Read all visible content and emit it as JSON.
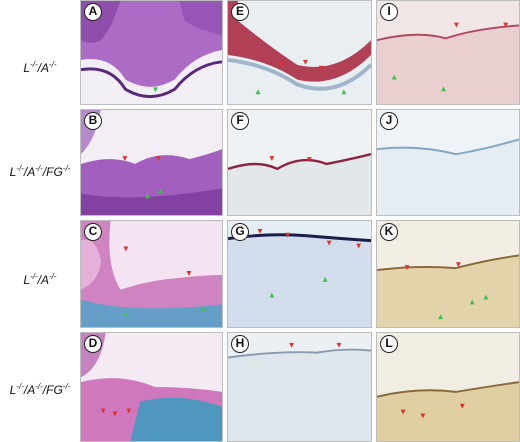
{
  "rows": [
    {
      "label": "L-/-/A-/-"
    },
    {
      "label": "L-/-/A-/-/FG-/-"
    },
    {
      "label": "L-/-/A-/-"
    },
    {
      "label": "L-/-/A-/-/FG-/-"
    }
  ],
  "panels": [
    {
      "letter": "A",
      "stain": "he"
    },
    {
      "letter": "E",
      "stain": "red-ihc"
    },
    {
      "letter": "I",
      "stain": "pink-ihc"
    },
    {
      "letter": "B",
      "stain": "he"
    },
    {
      "letter": "F",
      "stain": "red-ihc-light"
    },
    {
      "letter": "J",
      "stain": "blue-negative"
    },
    {
      "letter": "C",
      "stain": "movat"
    },
    {
      "letter": "G",
      "stain": "blue-ihc"
    },
    {
      "letter": "K",
      "stain": "brown-ihc"
    },
    {
      "letter": "D",
      "stain": "movat"
    },
    {
      "letter": "H",
      "stain": "blue-ihc-light"
    },
    {
      "letter": "L",
      "stain": "brown-ihc"
    }
  ],
  "colors": {
    "red_arrowhead": "#e0342a",
    "green_arrowhead": "#3cc24a",
    "he_purple": "#9a4fb8",
    "ihc_red": "#a8213a",
    "counterstain_blue": "#7fa8c8",
    "movat_cyan": "#4aa6c8",
    "dab_brown": "#b89a58"
  }
}
